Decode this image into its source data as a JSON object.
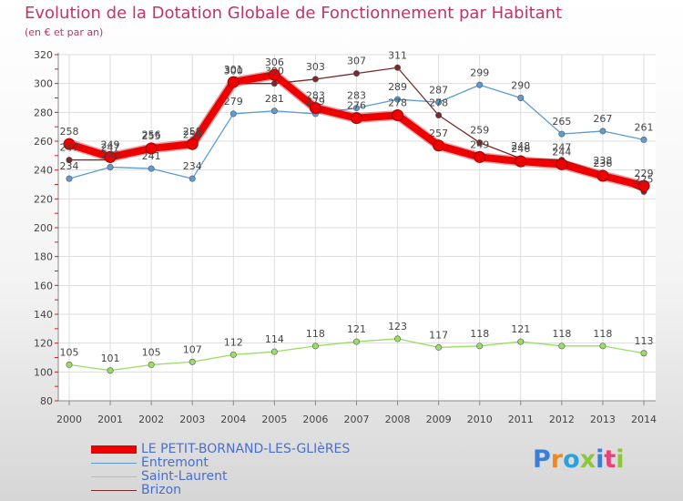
{
  "title": "Evolution de la Dotation Globale de Fonctionnement par Habitant",
  "subtitle": "(en € et par an)",
  "colors": {
    "title": "#c0346b",
    "grid": "#dddddd",
    "axis": "#888888",
    "label": "#444444",
    "legend_text": "#4a6fc9"
  },
  "logo": {
    "text": "Proxiti",
    "letter_colors": [
      "#3a7fd5",
      "#f08a1c",
      "#2aa1d8",
      "#8cc63f",
      "#3a7fd5",
      "#e8427c",
      "#8cc63f"
    ]
  },
  "chart_data": {
    "type": "line",
    "title": "Evolution de la Dotation Globale de Fonctionnement par Habitant",
    "ylabel": "(en € et par an)",
    "xlabel": "",
    "x": [
      "2000",
      "2001",
      "2002",
      "2003",
      "2004",
      "2005",
      "2006",
      "2007",
      "2008",
      "2009",
      "2010",
      "2011",
      "2012",
      "2013",
      "2014"
    ],
    "ylim": [
      80,
      320
    ],
    "yticks": [
      "80",
      "100",
      "120",
      "140",
      "160",
      "180",
      "200",
      "220",
      "240",
      "260",
      "280",
      "300",
      "320"
    ],
    "grid": true,
    "legend": "bottom-left",
    "series": [
      {
        "name": "LE PETIT-BORNAND-LES-GLIèRES",
        "color": "#ee0000",
        "width": "thick",
        "values": [
          258,
          249,
          255,
          258,
          301,
          306,
          283,
          276,
          278,
          257,
          249,
          246,
          244,
          236,
          229
        ],
        "labels": [
          "258",
          "249",
          "255",
          "258",
          "301",
          "306",
          "283",
          "276",
          "278",
          "257",
          "249",
          "246",
          "244",
          "236",
          "229"
        ]
      },
      {
        "name": "Entremont",
        "color": "#5e9bd3",
        "width": "thin",
        "values": [
          234,
          242,
          241,
          234,
          279,
          281,
          279,
          283,
          289,
          287,
          299,
          290,
          265,
          267,
          261
        ],
        "labels": [
          "234",
          "242",
          "241",
          "234",
          "279",
          "281",
          "279",
          "283",
          "289",
          "287",
          "299",
          "290",
          "265",
          "267",
          "261"
        ]
      },
      {
        "name": "Saint-Laurent",
        "color": "#99dd66",
        "width": "thin",
        "values": [
          105,
          101,
          105,
          107,
          112,
          114,
          118,
          121,
          123,
          117,
          118,
          121,
          118,
          118,
          113
        ],
        "labels": [
          "105",
          "101",
          "105",
          "107",
          "112",
          "114",
          "118",
          "121",
          "123",
          "117",
          "118",
          "121",
          "118",
          "118",
          "113"
        ]
      },
      {
        "name": "Brizon",
        "color": "#7a2a2a",
        "width": "thin",
        "values": [
          247,
          247,
          256,
          256,
          300,
          300,
          303,
          307,
          311,
          278,
          259,
          248,
          247,
          238,
          225
        ],
        "labels": [
          "247",
          "247",
          "256",
          "256",
          "300",
          "300",
          "303",
          "307",
          "311",
          "278",
          "259",
          "248",
          "247",
          "238",
          "225"
        ]
      }
    ]
  }
}
